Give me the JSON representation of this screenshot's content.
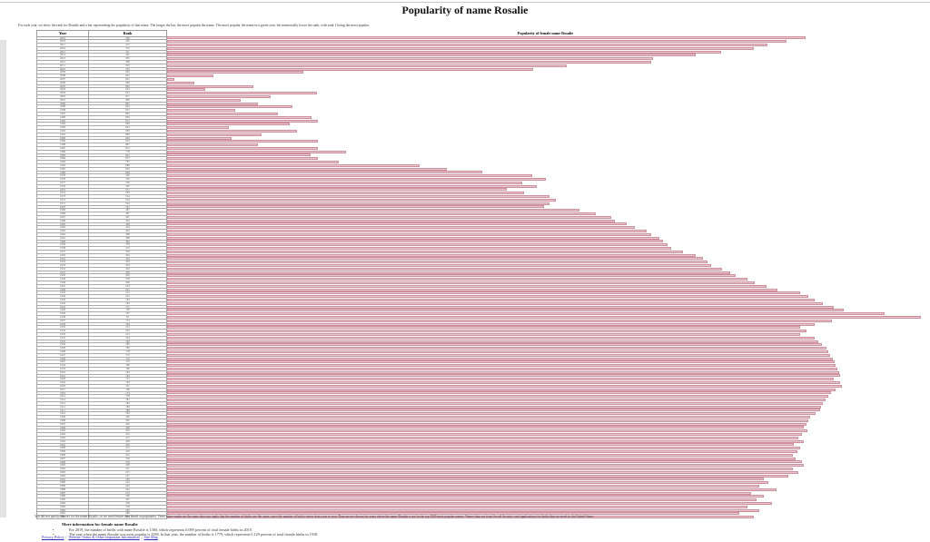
{
  "page": {
    "title": "Popularity of name Rosalie",
    "intro": "For each year, we show the rank for Rosalie and a bar representing the popularity of that name. The longer the bar, the more popular the name. The more popular the name in a given year, the numerically lower the rank, with rank 1 being the most popular.",
    "disclaimer": "You did not specify the sex for the name Rosalie, so we used female data based on popularity. Years where ranks are the same does not imply that the number of births are the same, since the number of births varies from year to year. Data are not shown for years where the name Rosalie is not in the top 1000 most popular names. Names data are from Social Security card applications for births that occurred in the United States.",
    "more_info_heading": "More information for female name Rosalie",
    "bullets": [
      "For 2019, the number of births with name Rosalie is 1360, which represents 0.089 percent of total female births in 2019.",
      "The year when the name Rosalie was most popular is 1938. In that year, the number of births is 1779, which represents 0.129 percent of total female births in 1938."
    ],
    "footer_links": [
      "Privacy Policy",
      "Website Terms & Other Important Information",
      "Site Map"
    ],
    "footer_separator": "|"
  },
  "table": {
    "columns": [
      "Year",
      "Rank",
      "Popularity of female name Rosalie"
    ]
  },
  "chart_data": {
    "type": "bar",
    "orientation": "horizontal",
    "title": "Popularity of female name Rosalie",
    "xlabel": "Year",
    "ylabel": "Rank",
    "rank_scale": [
      1,
      1000
    ],
    "note": "Longer bar = numerically lower rank = more popular; bar length proportional to (1000 - rank). Ranks estimated from bar pixel lengths.",
    "colors": {
      "bar_fill": "#F2C5CE",
      "bar_border": "#C9919E"
    },
    "years": [
      2019,
      2018,
      2017,
      2016,
      2015,
      2014,
      2013,
      2012,
      2011,
      2010,
      2009,
      2008,
      2007,
      2006,
      2005,
      2004,
      2003,
      2002,
      2001,
      2000,
      1999,
      1998,
      1997,
      1996,
      1995,
      1994,
      1993,
      1992,
      1991,
      1990,
      1989,
      1988,
      1987,
      1986,
      1985,
      1984,
      1983,
      1982,
      1981,
      1980,
      1979,
      1978,
      1977,
      1976,
      1975,
      1974,
      1973,
      1972,
      1971,
      1970,
      1969,
      1968,
      1967,
      1966,
      1965,
      1964,
      1963,
      1962,
      1961,
      1960,
      1959,
      1958,
      1957,
      1956,
      1955,
      1954,
      1953,
      1952,
      1951,
      1950,
      1949,
      1948,
      1947,
      1946,
      1945,
      1944,
      1943,
      1942,
      1941,
      1940,
      1939,
      1938,
      1937,
      1936,
      1935,
      1934,
      1933,
      1932,
      1931,
      1930,
      1929,
      1928,
      1927,
      1926,
      1925,
      1924,
      1923,
      1922,
      1921,
      1920,
      1919,
      1918,
      1917,
      1916,
      1915,
      1914,
      1913,
      1912,
      1911,
      1910,
      1909,
      1908,
      1907,
      1906,
      1905,
      1904,
      1903,
      1902,
      1901,
      1900,
      1899,
      1898,
      1897,
      1896,
      1895,
      1894,
      1893,
      1892,
      1891,
      1890,
      1889,
      1888,
      1887,
      1886,
      1885,
      1884,
      1883,
      1882,
      1881,
      1880
    ],
    "ranks": [
      206,
      230,
      253,
      270,
      311,
      342,
      395,
      398,
      503,
      545,
      830,
      942,
      991,
      966,
      893,
      953,
      814,
      871,
      908,
      887,
      844,
      915,
      862,
      820,
      813,
      848,
      923,
      838,
      883,
      920,
      813,
      887,
      813,
      778,
      822,
      813,
      787,
      686,
      652,
      608,
      546,
      529,
      558,
      540,
      577,
      556,
      524,
      516,
      524,
      531,
      487,
      467,
      447,
      443,
      428,
      418,
      403,
      398,
      388,
      383,
      378,
      373,
      358,
      342,
      333,
      328,
      323,
      310,
      299,
      293,
      278,
      269,
      254,
      241,
      213,
      202,
      194,
      184,
      171,
      158,
      107,
      62,
      173,
      194,
      213,
      205,
      213,
      194,
      190,
      185,
      180,
      178,
      175,
      172,
      170,
      168,
      166,
      164,
      163,
      171,
      163,
      161,
      168,
      174,
      178,
      181,
      184,
      186,
      188,
      193,
      200,
      202,
      205,
      208,
      203,
      210,
      215,
      208,
      220,
      212,
      216,
      222,
      218,
      210,
      208,
      221,
      215,
      227,
      258,
      252,
      263,
      242,
      273,
      258,
      267,
      248,
      278,
      263,
      288,
      270
    ]
  }
}
